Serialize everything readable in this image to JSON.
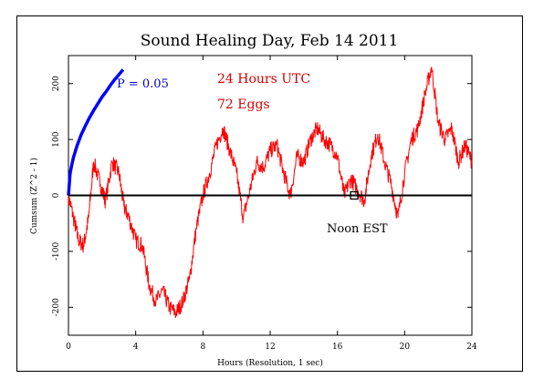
{
  "chart_data": {
    "type": "line",
    "title": "Sound Healing Day, Feb 14 2011",
    "xlabel": "Hours (Resolution, 1 sec)",
    "ylabel": "Cumsum (Z^2 - 1)",
    "xlim": [
      0,
      24
    ],
    "ylim": [
      -250,
      250
    ],
    "x_ticks": [
      "0",
      "4",
      "8",
      "12",
      "16",
      "20",
      "24"
    ],
    "y_ticks": [
      "-200",
      "-100",
      "0",
      "100",
      "200"
    ],
    "annotations": {
      "hours_utc": "24 Hours UTC",
      "eggs": "72 Eggs",
      "p_label": "P = 0.05",
      "noon_label": "Noon EST"
    },
    "noon_marker_x": 17,
    "colors": {
      "data": "#ff0000",
      "probability": "#0000ff",
      "baseline": "#000000"
    },
    "series": [
      {
        "x": [
          0,
          0.3,
          0.6,
          0.9,
          1.2,
          1.5,
          1.9,
          2.2,
          2.6,
          3.0,
          3.3,
          3.6,
          4.0,
          4.4,
          4.8,
          5.2,
          5.6,
          6.0,
          6.4,
          6.8,
          7.2,
          7.6,
          8.0,
          8.4,
          8.8,
          9.2,
          9.6,
          10.0,
          10.4,
          10.8,
          11.2,
          11.6,
          12.0,
          12.4,
          12.8,
          13.2,
          13.6,
          14.0,
          14.4,
          14.8,
          15.2,
          15.6,
          16.0,
          16.4,
          16.8,
          17.2,
          17.6,
          18.0,
          18.4,
          18.8,
          19.2,
          19.6,
          20.0,
          20.4,
          20.8,
          21.2,
          21.6,
          22.0,
          22.4,
          22.8,
          23.2,
          23.6,
          24.0
        ],
        "y": [
          0,
          -40,
          -80,
          -90,
          -40,
          60,
          20,
          -10,
          60,
          40,
          -20,
          -40,
          -80,
          -90,
          -160,
          -190,
          -170,
          -200,
          -210,
          -190,
          -150,
          -60,
          0,
          40,
          90,
          120,
          80,
          40,
          -40,
          10,
          60,
          50,
          80,
          90,
          40,
          0,
          70,
          60,
          100,
          120,
          100,
          90,
          70,
          0,
          30,
          10,
          -10,
          70,
          110,
          60,
          20,
          -40,
          40,
          100,
          120,
          180,
          230,
          130,
          100,
          120,
          60,
          90,
          60
        ]
      },
      {
        "x": [
          0,
          0.1,
          0.2,
          0.3,
          0.4,
          0.5,
          0.75,
          1.0,
          1.25,
          1.5,
          1.75,
          2.0,
          2.25,
          2.5,
          2.75,
          3.0,
          3.25
        ],
        "y": [
          0,
          39,
          55,
          68,
          78,
          88,
          108,
          124,
          139,
          152,
          164,
          176,
          186,
          197,
          207,
          216,
          225
        ]
      }
    ]
  }
}
